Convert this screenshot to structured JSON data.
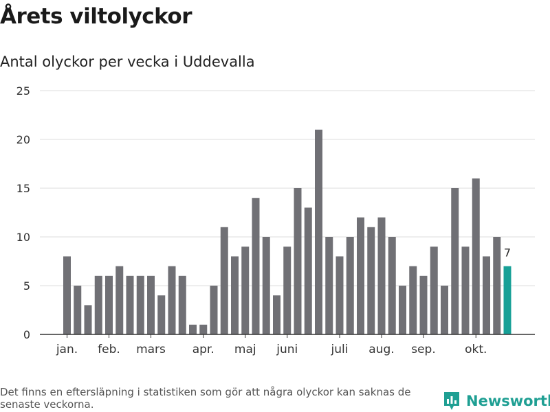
{
  "title": "Årets viltolyckor",
  "subtitle": "Antal olyckor per vecka i Uddevalla",
  "footnote": "Det finns en eftersläpning i statistiken som gör att några olyckor kan saknas de senaste veckorna.",
  "brand": "Newsworthy",
  "colors": {
    "bar": "#707075",
    "highlight": "#17a097",
    "grid": "#dddddd",
    "axis": "#333333",
    "brand": "#1f9f93"
  },
  "icons": {
    "brand_logo": "bar-chart-pin-icon"
  },
  "chart_data": {
    "type": "bar",
    "title": "Årets viltolyckor",
    "subtitle": "Antal olyckor per vecka i Uddevalla",
    "xlabel": "",
    "ylabel": "",
    "ylim": [
      0,
      25
    ],
    "yticks": [
      "0",
      "5",
      "10",
      "15",
      "20",
      "25"
    ],
    "grid": true,
    "values": [
      8,
      5,
      3,
      6,
      6,
      7,
      6,
      6,
      6,
      4,
      7,
      6,
      1,
      1,
      5,
      11,
      8,
      9,
      14,
      10,
      4,
      9,
      15,
      13,
      21,
      10,
      8,
      10,
      12,
      11,
      12,
      10,
      5,
      7,
      6,
      9,
      5,
      15,
      9,
      16,
      8,
      10,
      7
    ],
    "highlight_index": 42,
    "highlight_label": "7",
    "month_labels": [
      {
        "label": "jan.",
        "bar_index": 0
      },
      {
        "label": "feb.",
        "bar_index": 4
      },
      {
        "label": "mars",
        "bar_index": 8
      },
      {
        "label": "apr.",
        "bar_index": 13
      },
      {
        "label": "maj",
        "bar_index": 17
      },
      {
        "label": "juni",
        "bar_index": 21
      },
      {
        "label": "juli",
        "bar_index": 26
      },
      {
        "label": "aug.",
        "bar_index": 30
      },
      {
        "label": "sep.",
        "bar_index": 34
      },
      {
        "label": "okt.",
        "bar_index": 39
      }
    ]
  }
}
